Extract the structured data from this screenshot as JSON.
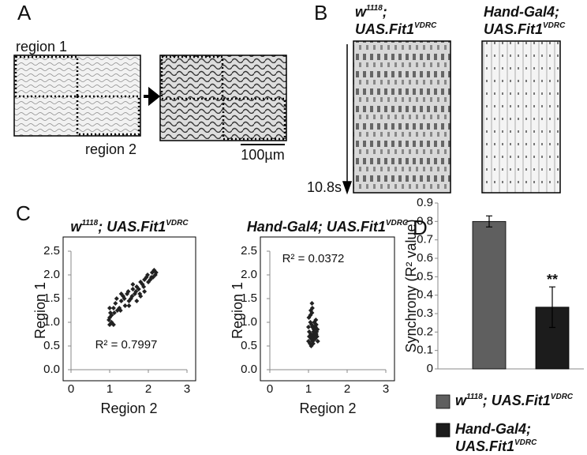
{
  "panel_labels": [
    "A",
    "B",
    "C",
    "D"
  ],
  "panel_a": {
    "region_1": "region 1",
    "region_2": "region 2",
    "scale_bar": "100µm"
  },
  "panel_b": {
    "time": "10.8s",
    "genotypes": [
      [
        [
          {
            "t": "w"
          },
          {
            "sup": "1118"
          },
          {
            "t": ";"
          }
        ],
        [
          {
            "t": "UAS.Fit1"
          },
          {
            "sup": "VDRC"
          }
        ]
      ],
      [
        [
          {
            "t": "Hand-Gal4;"
          }
        ],
        [
          {
            "t": "UAS.Fit1"
          },
          {
            "sup": "VDRC"
          }
        ]
      ]
    ]
  },
  "chart_data": [
    {
      "type": "scatter",
      "title": [
        {
          "t": "w"
        },
        {
          "sup": "1118"
        },
        {
          "t": "; UAS.Fit1"
        },
        {
          "sup": "VDRC"
        }
      ],
      "x_label": "Region 2",
      "y_label": "Region 1",
      "annotation": "R² = 0.7997",
      "color": "#222222",
      "xlim": [
        0,
        3
      ],
      "xticks": [
        0,
        1,
        2,
        3
      ],
      "ylim": [
        0,
        2.5
      ],
      "yticks": [
        {
          "value": 0,
          "label": "0.0"
        },
        {
          "value": 0.5,
          "label": "0.5"
        },
        {
          "value": 1,
          "label": "1.0"
        },
        {
          "value": 1.5,
          "label": "1.5"
        },
        {
          "value": 2,
          "label": "2.0"
        },
        {
          "value": 2.5,
          "label": "2.5"
        }
      ],
      "x": [
        1.0,
        1.0,
        1.02,
        1.05,
        0.98,
        1.1,
        1.05,
        1.12,
        1.15,
        1.2,
        1.18,
        1.25,
        1.3,
        1.28,
        1.35,
        1.4,
        1.38,
        1.45,
        1.5,
        1.48,
        1.55,
        1.6,
        1.58,
        1.65,
        1.7,
        1.68,
        1.75,
        1.8,
        1.78,
        1.85,
        1.9,
        1.88,
        1.95,
        2.0,
        1.98,
        2.05,
        2.1,
        2.08,
        2.15,
        2.2,
        2.12,
        2.18,
        1.3,
        1.5,
        1.7,
        1.9,
        1.0,
        1.1,
        1.6,
        1.8
      ],
      "values": [
        0.95,
        1.1,
        1.2,
        1.0,
        1.05,
        1.3,
        1.15,
        1.2,
        1.4,
        1.25,
        1.5,
        1.3,
        1.45,
        1.25,
        1.55,
        1.35,
        1.5,
        1.6,
        1.45,
        1.65,
        1.5,
        1.7,
        1.55,
        1.6,
        1.75,
        1.65,
        1.7,
        1.85,
        1.6,
        1.8,
        1.9,
        1.75,
        1.95,
        1.85,
        2.0,
        1.9,
        2.05,
        1.95,
        2.1,
        2.05,
        1.95,
        2.0,
        1.6,
        1.35,
        1.45,
        1.65,
        1.3,
        0.95,
        1.8,
        1.55
      ]
    },
    {
      "type": "scatter",
      "title": [
        {
          "t": "Hand-Gal4; UAS.Fit1"
        },
        {
          "sup": "VDRC"
        }
      ],
      "x_label": "Region 2",
      "y_label": "Region 1",
      "annotation": "R² = 0.0372",
      "color": "#222222",
      "xlim": [
        0,
        3
      ],
      "xticks": [
        0,
        1,
        2,
        3
      ],
      "ylim": [
        0,
        2.5
      ],
      "yticks": [
        {
          "value": 0,
          "label": "0.0"
        },
        {
          "value": 0.5,
          "label": "0.5"
        },
        {
          "value": 1,
          "label": "1.0"
        },
        {
          "value": 1.5,
          "label": "1.5"
        },
        {
          "value": 2,
          "label": "2.0"
        },
        {
          "value": 2.5,
          "label": "2.5"
        }
      ],
      "x": [
        1.0,
        1.02,
        1.05,
        1.08,
        1.1,
        1.12,
        1.15,
        1.18,
        1.2,
        1.22,
        1.01,
        1.04,
        1.06,
        1.09,
        1.11,
        1.14,
        1.16,
        1.19,
        1.21,
        1.24,
        1.0,
        1.03,
        1.07,
        1.1,
        1.13,
        1.17,
        1.2,
        1.23,
        1.05,
        1.08,
        1.12,
        1.15,
        1.02,
        1.06,
        1.1,
        1.14,
        1.18,
        1.09,
        1.12,
        1.07
      ],
      "values": [
        0.6,
        0.8,
        1.0,
        0.7,
        0.9,
        0.65,
        0.85,
        0.75,
        0.95,
        0.7,
        1.1,
        0.55,
        0.75,
        1.2,
        0.6,
        0.9,
        0.7,
        1.05,
        0.8,
        0.6,
        0.9,
        0.7,
        0.5,
        1.3,
        0.8,
        0.65,
        0.75,
        0.85,
        1.15,
        0.95,
        0.55,
        1.0,
        0.7,
        1.25,
        0.6,
        0.85,
        0.9,
        1.4,
        0.75,
        0.65
      ]
    },
    {
      "type": "bar",
      "y_label": "Synchrony (R² value)",
      "ylim": [
        0,
        0.9
      ],
      "yticks": [
        0,
        0.1,
        0.2,
        0.3,
        0.4,
        0.5,
        0.6,
        0.7,
        0.8,
        0.9
      ],
      "annotation": "**",
      "series": [
        {
          "name": [
            [
              {
                "t": "w"
              },
              {
                "sup": "1118"
              },
              {
                "t": "; UAS.Fit1"
              },
              {
                "sup": "VDRC"
              }
            ]
          ],
          "color": "#5f5f5f",
          "values": [
            0.8
          ],
          "errors": [
            0.03
          ]
        },
        {
          "name": [
            [
              {
                "t": "Hand-Gal4;"
              }
            ],
            [
              {
                "t": "UAS.Fit1"
              },
              {
                "sup": "VDRC"
              }
            ]
          ],
          "color": "#1c1c1c",
          "values": [
            0.335
          ],
          "errors": [
            0.11
          ]
        }
      ]
    }
  ]
}
